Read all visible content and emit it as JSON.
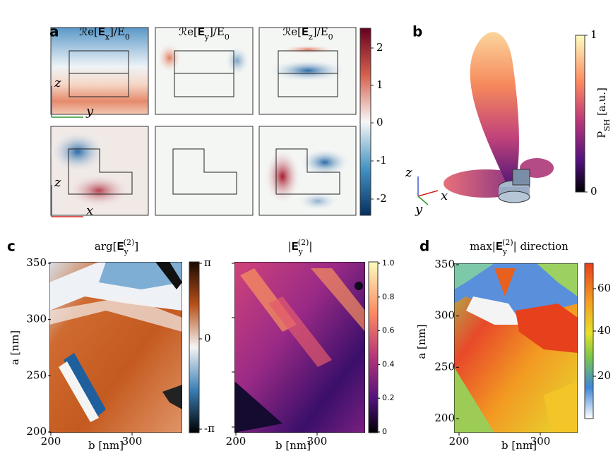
{
  "panel_a": {
    "label": "a",
    "titles": [
      [
        {
          "t": "ℛe[𝐄"
        },
        {
          "t": "x",
          "sub": true
        },
        {
          "t": "]/E"
        },
        {
          "t": "0",
          "sub": true
        }
      ],
      [
        {
          "t": "ℛe[𝐄"
        },
        {
          "t": "y",
          "sub": true
        },
        {
          "t": "]/E"
        },
        {
          "t": "0",
          "sub": true
        }
      ],
      [
        {
          "t": "ℛe[𝐄"
        },
        {
          "t": "z",
          "sub": true
        },
        {
          "t": "]/E"
        },
        {
          "t": "0",
          "sub": true
        }
      ]
    ],
    "axis_labels": [
      {
        "up": "z",
        "side": "y"
      },
      {
        "up": "z",
        "side": "x"
      }
    ],
    "colorbar_ticks": [
      2,
      1,
      0,
      -1,
      -2
    ]
  },
  "panel_b": {
    "label": "b",
    "colorbar_ticks": [
      1,
      0
    ],
    "colorbar_label": [
      {
        "t": "P"
      },
      {
        "t": "SH",
        "sub": true
      },
      {
        "t": " [a.u.]"
      }
    ],
    "axis_labels": [
      "z",
      "x",
      "y"
    ]
  },
  "panel_c": {
    "label": "c",
    "titles": [
      [
        {
          "t": "arg[𝐄"
        },
        {
          "t": "y",
          "sub": true
        },
        {
          "t": "(2)",
          "sup": true
        },
        {
          "t": "]"
        }
      ],
      [
        {
          "t": "|𝐄"
        },
        {
          "t": "y",
          "sub": true
        },
        {
          "t": "(2)",
          "sup": true
        },
        {
          "t": "|"
        }
      ]
    ],
    "xlabel": "b [nm]",
    "ylabel": "a [nm]",
    "xticks": [
      200,
      300
    ],
    "yticks": [
      350,
      300,
      250,
      200
    ],
    "colorbar1_ticks": [
      "π",
      0,
      "-π"
    ],
    "colorbar2_ticks": [
      "1.0",
      "0.8",
      "0.6",
      "0.4",
      "0.2",
      0
    ]
  },
  "panel_d": {
    "label": "d",
    "title": [
      {
        "t": "max|𝐄"
      },
      {
        "t": "y",
        "sub": true
      },
      {
        "t": "(2)",
        "sup": true
      },
      {
        "t": "| direction"
      }
    ],
    "xlabel": "b [nm]",
    "ylabel": "a [nm]",
    "xticks": [
      200,
      300
    ],
    "yticks": [
      350,
      300,
      250,
      200
    ],
    "colorbar_ticks": [
      60,
      40,
      20
    ]
  }
}
